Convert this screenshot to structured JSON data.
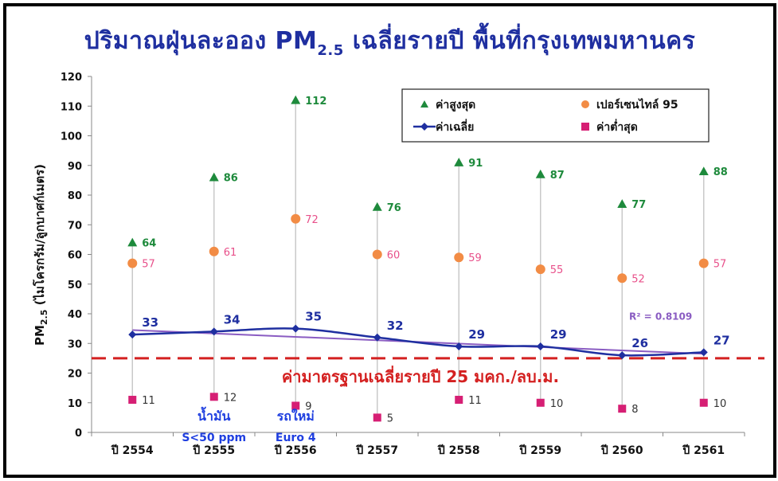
{
  "title": {
    "pre": "ปริมาณฝุ่นละออง PM",
    "sub": "2.5",
    "post": " เฉลี่ยรายปี พื้นที่กรุงเทพมหานคร"
  },
  "colors": {
    "max": "#1e8a3c",
    "p95": "#f28c45",
    "avg": "#1f2fa0",
    "min": "#d61f74",
    "trend": "#8a5cc2",
    "standard": "#d42020",
    "title": "#1f2fa0",
    "note": "#1f3fe0"
  },
  "chart_data": {
    "type": "scatter",
    "categories": [
      "ปี 2554",
      "ปี 2555",
      "ปี 2556",
      "ปี 2557",
      "ปี 2558",
      "ปี 2559",
      "ปี 2560",
      "ปี 2561"
    ],
    "ylabel": "PM2.5 (ไมโครกรัม/ลูกบาศก์เมตร)",
    "ylim": [
      0,
      120
    ],
    "yticks": [
      0,
      10,
      20,
      30,
      40,
      50,
      60,
      70,
      80,
      90,
      100,
      110,
      120
    ],
    "grid": false,
    "legend_position": "top-right",
    "series": [
      {
        "key": "max",
        "name": "ค่าสูงสุด",
        "marker": "triangle",
        "values": [
          64,
          86,
          112,
          76,
          91,
          87,
          77,
          88
        ]
      },
      {
        "key": "p95",
        "name": "เปอร์เซนไทล์ 95",
        "marker": "circle",
        "values": [
          57,
          61,
          72,
          60,
          59,
          55,
          52,
          57
        ]
      },
      {
        "key": "avg",
        "name": "ค่าเฉลี่ย",
        "marker": "diamond-line",
        "values": [
          33,
          34,
          35,
          32,
          29,
          29,
          26,
          27
        ]
      },
      {
        "key": "min",
        "name": "ค่าต่ำสุด",
        "marker": "square",
        "values": [
          11,
          12,
          9,
          5,
          11,
          10,
          8,
          10
        ]
      }
    ],
    "trendline": {
      "r2_label": "R² = 0.8109",
      "start": 34.5,
      "end": 26.5
    },
    "standard_line": {
      "value": 25,
      "label": "ค่ามาตรฐานเฉลี่ยรายปี 25 มคก./ลบ.ม."
    },
    "annotations": [
      {
        "category_index": 1,
        "lines": [
          "น้ำมัน",
          "S<50 ppm"
        ]
      },
      {
        "category_index": 2,
        "lines": [
          "รถใหม่",
          "Euro 4"
        ]
      }
    ]
  }
}
